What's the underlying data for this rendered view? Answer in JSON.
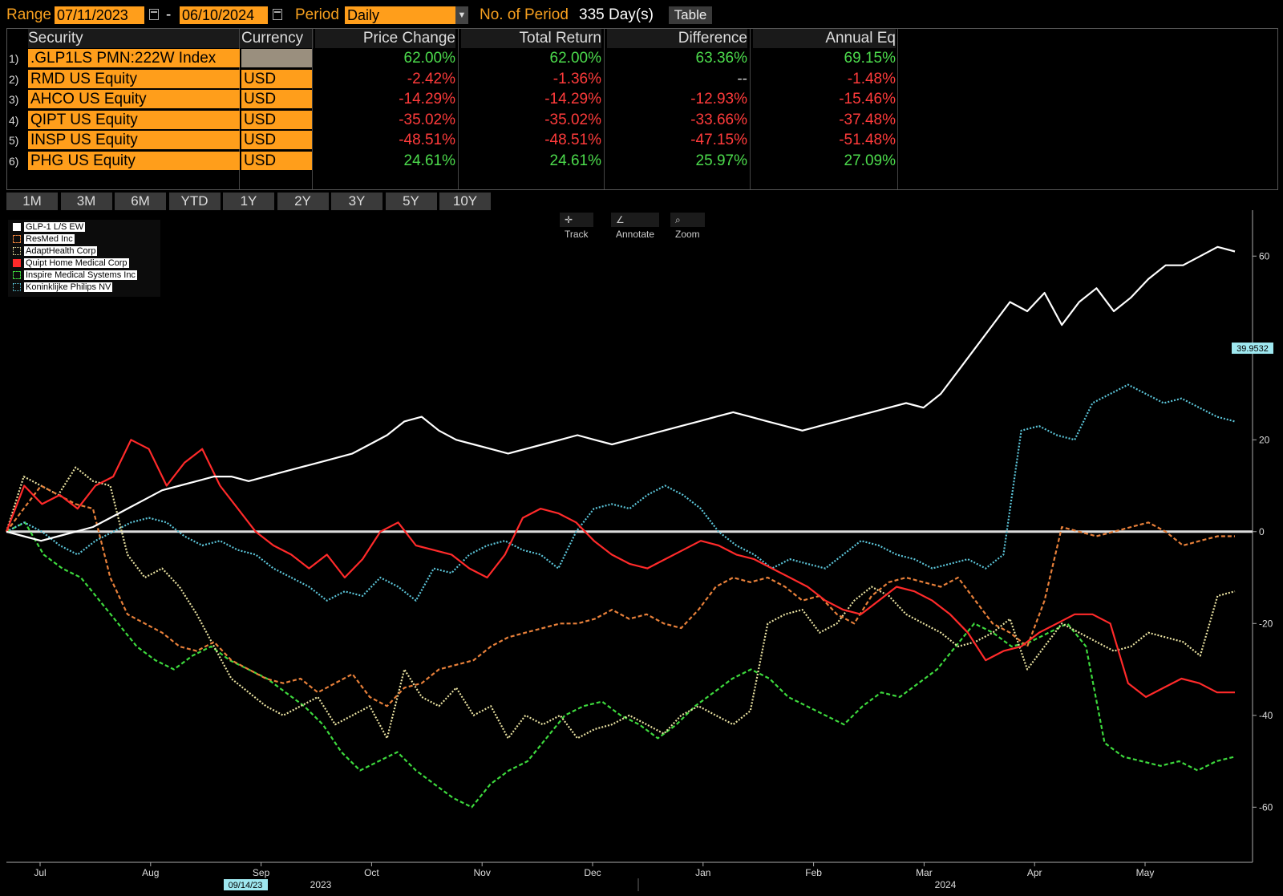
{
  "header": {
    "range_label": "Range",
    "start_date": "07/11/2023",
    "dash": "-",
    "end_date": "06/10/2024",
    "period_label": "Period",
    "period_value": "Daily",
    "num_period_label": "No. of Period",
    "num_period_value": "335 Day(s)",
    "table_button": "Table"
  },
  "table": {
    "columns": [
      "Security",
      "Currency",
      "Price Change",
      "Total Return",
      "Difference",
      "Annual Eq"
    ],
    "rows": [
      {
        "num": "1)",
        "security": ".GLP1LS PMN:222W Index",
        "currency": "",
        "price_change": "62.00%",
        "total_return": "62.00%",
        "difference": "63.36%",
        "annual_eq": "69.15%",
        "sign": "pos"
      },
      {
        "num": "2)",
        "security": "RMD US Equity",
        "currency": "USD",
        "price_change": "-2.42%",
        "total_return": "-1.36%",
        "difference": "--",
        "annual_eq": "-1.48%",
        "sign": "neg"
      },
      {
        "num": "3)",
        "security": "AHCO US Equity",
        "currency": "USD",
        "price_change": "-14.29%",
        "total_return": "-14.29%",
        "difference": "-12.93%",
        "annual_eq": "-15.46%",
        "sign": "neg"
      },
      {
        "num": "4)",
        "security": "QIPT US Equity",
        "currency": "USD",
        "price_change": "-35.02%",
        "total_return": "-35.02%",
        "difference": "-33.66%",
        "annual_eq": "-37.48%",
        "sign": "neg"
      },
      {
        "num": "5)",
        "security": "INSP US Equity",
        "currency": "USD",
        "price_change": "-48.51%",
        "total_return": "-48.51%",
        "difference": "-47.15%",
        "annual_eq": "-51.48%",
        "sign": "neg"
      },
      {
        "num": "6)",
        "security": "PHG US Equity",
        "currency": "USD",
        "price_change": "24.61%",
        "total_return": "24.61%",
        "difference": "25.97%",
        "annual_eq": "27.09%",
        "sign": "pos"
      }
    ]
  },
  "periods": [
    "1M",
    "3M",
    "6M",
    "YTD",
    "1Y",
    "2Y",
    "3Y",
    "5Y",
    "10Y"
  ],
  "tools": {
    "track": "Track",
    "annotate": "Annotate",
    "zoom": "Zoom"
  },
  "legend": [
    {
      "label": "GLP-1 L/S EW",
      "color": "#ffffff",
      "style": "solid"
    },
    {
      "label": "ResMed Inc",
      "color": "#e8803a",
      "style": "dashed"
    },
    {
      "label": "AdaptHealth Corp",
      "color": "#e8e0a0",
      "style": "dotted"
    },
    {
      "label": "Quipt Home Medical Corp",
      "color": "#ff2a2a",
      "style": "solid"
    },
    {
      "label": "Inspire Medical Systems Inc",
      "color": "#3dd93d",
      "style": "dashed"
    },
    {
      "label": "Koninklijke Philips NV",
      "color": "#5bc4d8",
      "style": "dotted"
    }
  ],
  "chart_data": {
    "type": "line",
    "x_ticks": [
      "Jul",
      "Aug",
      "Sep",
      "Oct",
      "Nov",
      "Dec",
      "Jan",
      "Feb",
      "Mar",
      "Apr",
      "May"
    ],
    "year_labels": [
      "2023",
      "2024"
    ],
    "y_ticks": [
      60,
      20,
      0,
      -20,
      -40,
      -60
    ],
    "ylim": [
      -72,
      70
    ],
    "last_value_label": "39.9532",
    "crosshair_date": "09/14/23",
    "series": [
      {
        "name": "GLP-1 L/S EW",
        "color": "#ffffff",
        "dash": "",
        "values": [
          0,
          -1,
          -2,
          -1,
          0,
          1,
          3,
          5,
          7,
          9,
          10,
          11,
          12,
          12,
          11,
          12,
          13,
          14,
          15,
          16,
          17,
          19,
          21,
          24,
          25,
          22,
          20,
          19,
          18,
          17,
          18,
          19,
          20,
          21,
          20,
          19,
          20,
          21,
          22,
          23,
          24,
          25,
          26,
          25,
          24,
          23,
          22,
          23,
          24,
          25,
          26,
          27,
          28,
          27,
          30,
          35,
          40,
          45,
          50,
          48,
          52,
          45,
          50,
          53,
          48,
          51,
          55,
          58,
          58,
          60,
          62,
          61
        ]
      },
      {
        "name": "ResMed Inc",
        "color": "#e8803a",
        "dash": "5,3",
        "values": [
          0,
          5,
          10,
          8,
          6,
          5,
          -10,
          -18,
          -20,
          -22,
          -25,
          -26,
          -24,
          -28,
          -30,
          -32,
          -33,
          -32,
          -35,
          -33,
          -31,
          -36,
          -38,
          -34,
          -33,
          -30,
          -29,
          -28,
          -25,
          -23,
          -22,
          -21,
          -20,
          -20,
          -19,
          -17,
          -19,
          -18,
          -20,
          -21,
          -17,
          -12,
          -10,
          -11,
          -10,
          -12,
          -15,
          -14,
          -18,
          -20,
          -14,
          -11,
          -10,
          -11,
          -12,
          -10,
          -15,
          -20,
          -22,
          -25,
          -15,
          1,
          0,
          -1,
          0,
          1,
          2,
          0,
          -3,
          -2,
          -1,
          -1
        ]
      },
      {
        "name": "AdaptHealth Corp",
        "color": "#e8e0a0",
        "dash": "2,2",
        "values": [
          0,
          12,
          10,
          8,
          14,
          11,
          10,
          -5,
          -10,
          -8,
          -12,
          -18,
          -25,
          -32,
          -35,
          -38,
          -40,
          -38,
          -36,
          -42,
          -40,
          -38,
          -45,
          -30,
          -36,
          -38,
          -34,
          -40,
          -38,
          -45,
          -40,
          -42,
          -40,
          -45,
          -43,
          -42,
          -40,
          -42,
          -44,
          -40,
          -38,
          -40,
          -42,
          -39,
          -20,
          -18,
          -17,
          -22,
          -20,
          -15,
          -12,
          -14,
          -18,
          -20,
          -22,
          -25,
          -24,
          -22,
          -19,
          -30,
          -25,
          -20,
          -22,
          -24,
          -26,
          -25,
          -22,
          -23,
          -24,
          -27,
          -14,
          -13
        ]
      },
      {
        "name": "Quipt Home Medical Corp",
        "color": "#ff2a2a",
        "dash": "",
        "values": [
          0,
          10,
          6,
          8,
          5,
          10,
          12,
          20,
          18,
          10,
          15,
          18,
          10,
          5,
          0,
          -3,
          -5,
          -8,
          -5,
          -10,
          -6,
          0,
          2,
          -3,
          -4,
          -5,
          -8,
          -10,
          -5,
          3,
          5,
          4,
          2,
          -2,
          -5,
          -7,
          -8,
          -6,
          -4,
          -2,
          -3,
          -5,
          -6,
          -8,
          -10,
          -12,
          -15,
          -17,
          -18,
          -15,
          -12,
          -13,
          -15,
          -18,
          -22,
          -28,
          -26,
          -25,
          -22,
          -20,
          -18,
          -18,
          -20,
          -33,
          -36,
          -34,
          -32,
          -33,
          -35,
          -35
        ]
      },
      {
        "name": "Inspire Medical Systems Inc",
        "color": "#3dd93d",
        "dash": "5,3",
        "values": [
          0,
          2,
          -5,
          -8,
          -10,
          -15,
          -20,
          -25,
          -28,
          -30,
          -27,
          -25,
          -28,
          -30,
          -32,
          -35,
          -38,
          -42,
          -48,
          -52,
          -50,
          -48,
          -52,
          -55,
          -58,
          -60,
          -55,
          -52,
          -50,
          -45,
          -40,
          -38,
          -37,
          -40,
          -42,
          -45,
          -42,
          -38,
          -35,
          -32,
          -30,
          -32,
          -36,
          -38,
          -40,
          -42,
          -38,
          -35,
          -36,
          -33,
          -30,
          -25,
          -20,
          -22,
          -25,
          -24,
          -22,
          -20,
          -25,
          -46,
          -49,
          -50,
          -51,
          -50,
          -52,
          -50,
          -49
        ]
      },
      {
        "name": "Koninklijke Philips NV",
        "color": "#5bc4d8",
        "dash": "2,2",
        "values": [
          0,
          2,
          0,
          -3,
          -5,
          -2,
          0,
          2,
          3,
          2,
          -1,
          -3,
          -2,
          -4,
          -5,
          -8,
          -10,
          -12,
          -15,
          -13,
          -14,
          -10,
          -12,
          -15,
          -8,
          -9,
          -5,
          -3,
          -2,
          -4,
          -5,
          -8,
          0,
          5,
          6,
          5,
          8,
          10,
          8,
          5,
          0,
          -3,
          -5,
          -8,
          -6,
          -7,
          -8,
          -5,
          -2,
          -3,
          -5,
          -6,
          -8,
          -7,
          -6,
          -8,
          -5,
          22,
          23,
          21,
          20,
          28,
          30,
          32,
          30,
          28,
          29,
          27,
          25,
          24
        ]
      }
    ]
  }
}
